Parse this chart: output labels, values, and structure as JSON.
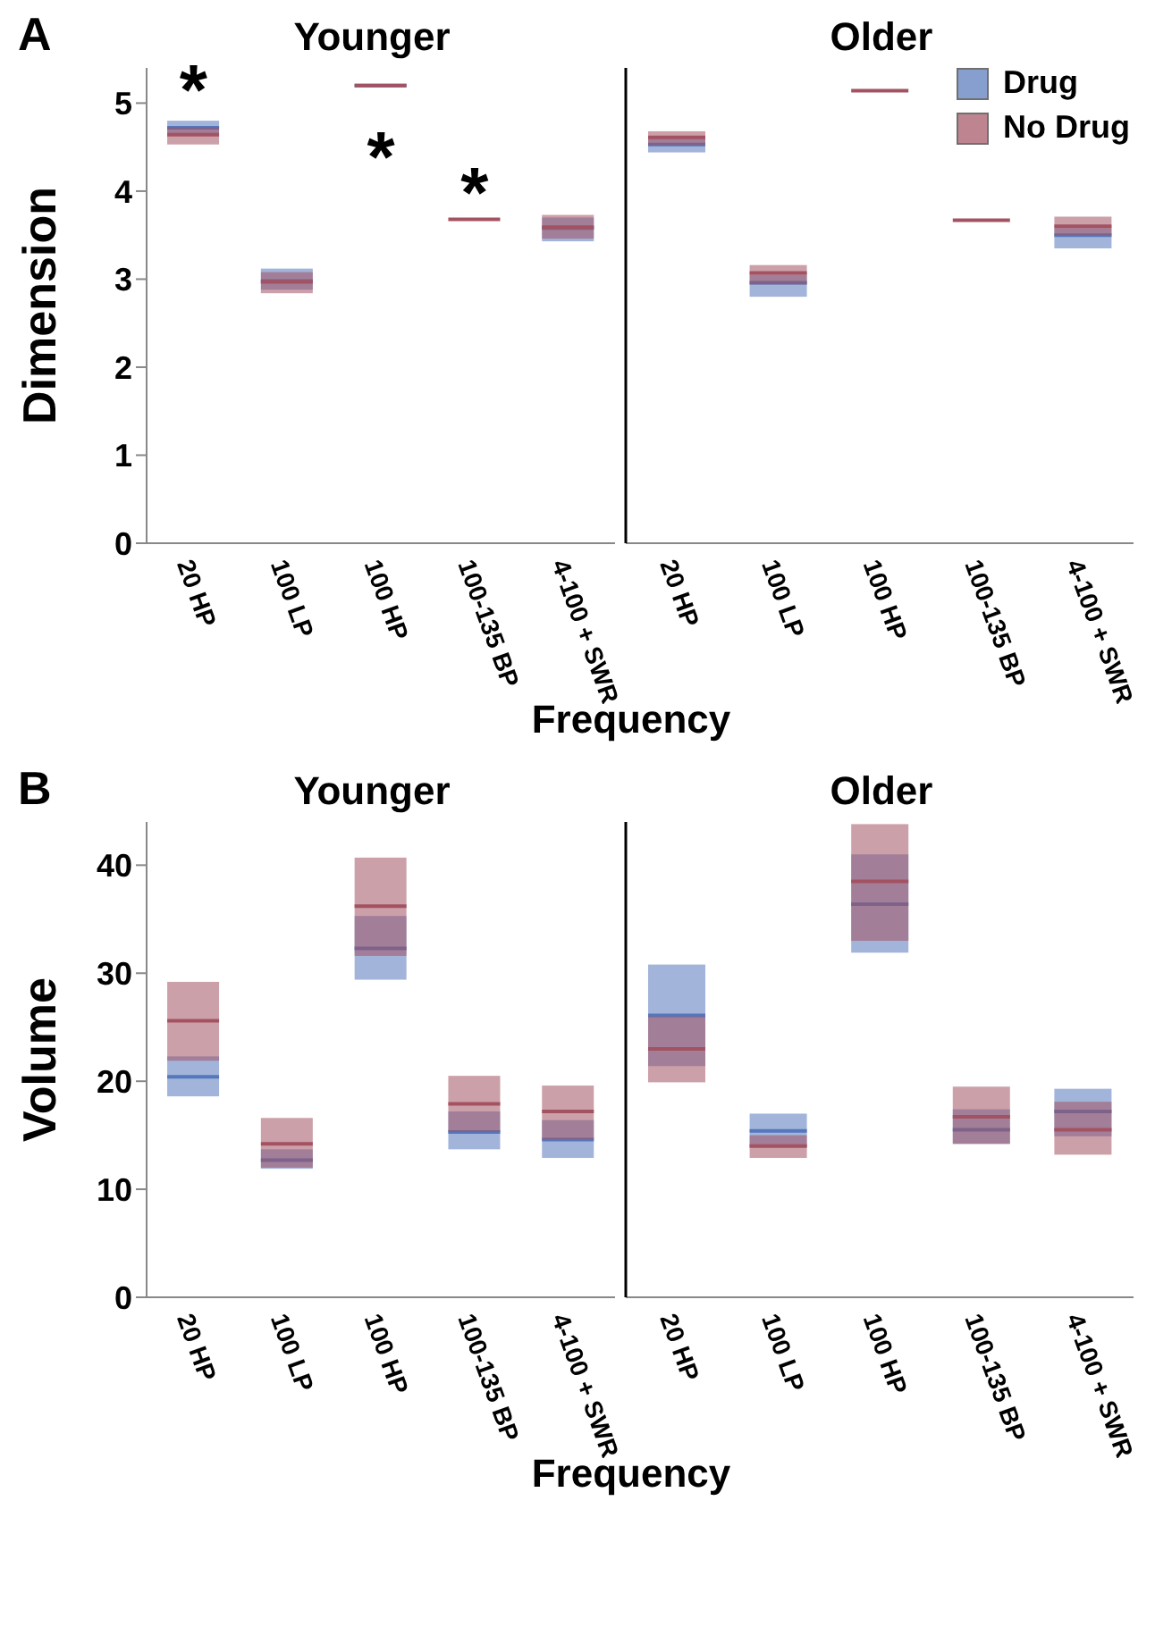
{
  "chart_data": [
    {
      "type": "box",
      "title": "Younger",
      "ylabel": "Dimension",
      "xlabel": "Frequency",
      "categories": [
        "20 HP",
        "100 LP",
        "100 HP",
        "100-135 BP",
        "4-100 + SWR"
      ],
      "ylim": [
        0,
        5.4
      ],
      "yticks": [
        0,
        1,
        2,
        3,
        4,
        5
      ],
      "series": [
        {
          "color": "#5577bb",
          "boxes": [
            {
              "low": 4.65,
              "q1": 4.65,
              "median": 4.72,
              "q3": 4.8,
              "high": 4.8
            },
            {
              "low": 2.88,
              "q1": 2.88,
              "median": 2.98,
              "q3": 3.12,
              "high": 3.12
            },
            {
              "low": 5.2,
              "q1": 5.2,
              "median": 5.2,
              "q3": 5.2,
              "high": 5.2
            },
            null,
            {
              "low": 3.43,
              "q1": 3.43,
              "median": 3.58,
              "q3": 3.7,
              "high": 3.7
            }
          ]
        },
        {
          "color": "#a35262",
          "boxes": [
            {
              "low": 4.53,
              "q1": 4.53,
              "median": 4.64,
              "q3": 4.73,
              "high": 4.73
            },
            {
              "low": 2.84,
              "q1": 2.84,
              "median": 2.97,
              "q3": 3.08,
              "high": 3.08
            },
            {
              "low": 5.2,
              "q1": 5.2,
              "median": 5.2,
              "q3": 5.2,
              "high": 5.2
            },
            {
              "low": 3.68,
              "q1": 3.68,
              "median": 3.68,
              "q3": 3.68,
              "high": 3.68
            },
            {
              "low": 3.46,
              "q1": 3.46,
              "median": 3.59,
              "q3": 3.73,
              "high": 3.73
            }
          ]
        }
      ],
      "annotations": [
        "A",
        "*",
        "*",
        "*"
      ]
    },
    {
      "type": "box",
      "title": "Older",
      "categories": [
        "20 HP",
        "100 LP",
        "100 HP",
        "100-135 BP",
        "4-100 + SWR"
      ],
      "ylim": [
        0,
        5.4
      ],
      "yticks": [
        0,
        1,
        2,
        3,
        4,
        5
      ],
      "tick_labels": "x",
      "legend": "top right",
      "series": [
        {
          "name": "Drug",
          "color": "#5577bb",
          "boxes": [
            {
              "low": 4.44,
              "q1": 4.44,
              "median": 4.53,
              "q3": 4.62,
              "high": 4.62
            },
            {
              "low": 2.8,
              "q1": 2.8,
              "median": 2.96,
              "q3": 3.05,
              "high": 3.05
            },
            null,
            null,
            {
              "low": 3.35,
              "q1": 3.35,
              "median": 3.5,
              "q3": 3.58,
              "high": 3.58
            }
          ]
        },
        {
          "name": "No Drug",
          "color": "#a35262",
          "boxes": [
            {
              "low": 4.52,
              "q1": 4.52,
              "median": 4.61,
              "q3": 4.68,
              "high": 4.68
            },
            {
              "low": 2.94,
              "q1": 2.94,
              "median": 3.07,
              "q3": 3.16,
              "high": 3.16
            },
            {
              "low": 5.14,
              "q1": 5.14,
              "median": 5.14,
              "q3": 5.14,
              "high": 5.14
            },
            {
              "low": 3.67,
              "q1": 3.67,
              "median": 3.67,
              "q3": 3.67,
              "high": 3.67
            },
            {
              "low": 3.5,
              "q1": 3.5,
              "median": 3.6,
              "q3": 3.71,
              "high": 3.71
            }
          ]
        }
      ]
    },
    {
      "type": "box",
      "title": "Younger",
      "ylabel": "Volume",
      "xlabel": "Frequency",
      "categories": [
        "20 HP",
        "100 LP",
        "100 HP",
        "100-135 BP",
        "4-100 + SWR"
      ],
      "ylim": [
        0,
        44
      ],
      "yticks": [
        0,
        10,
        20,
        30,
        40
      ],
      "series": [
        {
          "color": "#5577bb",
          "boxes": [
            {
              "low": 18.6,
              "q1": 18.6,
              "median": 20.4,
              "q3": 22.3,
              "high": 22.3
            },
            {
              "low": 11.9,
              "q1": 11.9,
              "median": 12.7,
              "q3": 13.7,
              "high": 13.7
            },
            {
              "low": 29.4,
              "q1": 29.4,
              "median": 32.3,
              "q3": 35.3,
              "high": 35.3
            },
            {
              "low": 13.7,
              "q1": 13.7,
              "median": 15.3,
              "q3": 17.2,
              "high": 17.2
            },
            {
              "low": 12.9,
              "q1": 12.9,
              "median": 14.6,
              "q3": 16.4,
              "high": 16.4
            }
          ]
        },
        {
          "color": "#a35262",
          "boxes": [
            {
              "low": 21.9,
              "q1": 21.9,
              "median": 25.6,
              "q3": 29.2,
              "high": 29.2
            },
            {
              "low": 12,
              "q1": 12,
              "median": 14.2,
              "q3": 16.6,
              "high": 16.6
            },
            {
              "low": 31.6,
              "q1": 31.6,
              "median": 36.2,
              "q3": 40.7,
              "high": 40.7
            },
            {
              "low": 15.3,
              "q1": 15.3,
              "median": 17.9,
              "q3": 20.5,
              "high": 20.5
            },
            {
              "low": 14.6,
              "q1": 14.6,
              "median": 17.2,
              "q3": 19.6,
              "high": 19.6
            }
          ]
        }
      ],
      "annotations": [
        "B"
      ]
    },
    {
      "type": "box",
      "title": "Older",
      "categories": [
        "20 HP",
        "100 LP",
        "100 HP",
        "100-135 BP",
        "4-100 + SWR"
      ],
      "ylim": [
        0,
        44
      ],
      "yticks": [
        0,
        10,
        20,
        30,
        40
      ],
      "tick_labels": "x",
      "series": [
        {
          "color": "#5577bb",
          "boxes": [
            {
              "low": 21.4,
              "q1": 21.4,
              "median": 26.1,
              "q3": 30.8,
              "high": 30.8
            },
            {
              "low": 13.9,
              "q1": 13.9,
              "median": 15.4,
              "q3": 17,
              "high": 17
            },
            {
              "low": 31.9,
              "q1": 31.9,
              "median": 36.4,
              "q3": 41,
              "high": 41
            },
            {
              "low": 14.2,
              "q1": 14.2,
              "median": 15.5,
              "q3": 17.4,
              "high": 17.4
            },
            {
              "low": 14.9,
              "q1": 14.9,
              "median": 17.2,
              "q3": 19.3,
              "high": 19.3
            }
          ]
        },
        {
          "color": "#a35262",
          "boxes": [
            {
              "low": 19.9,
              "q1": 19.9,
              "median": 23,
              "q3": 26,
              "high": 26
            },
            {
              "low": 12.9,
              "q1": 12.9,
              "median": 14,
              "q3": 15,
              "high": 15
            },
            {
              "low": 33,
              "q1": 33,
              "median": 38.5,
              "q3": 43.8,
              "high": 43.8
            },
            {
              "low": 14.2,
              "q1": 14.2,
              "median": 16.7,
              "q3": 19.5,
              "high": 19.5
            },
            {
              "low": 13.2,
              "q1": 13.2,
              "median": 15.5,
              "q3": 18.1,
              "high": 18.1
            }
          ]
        }
      ]
    }
  ]
}
